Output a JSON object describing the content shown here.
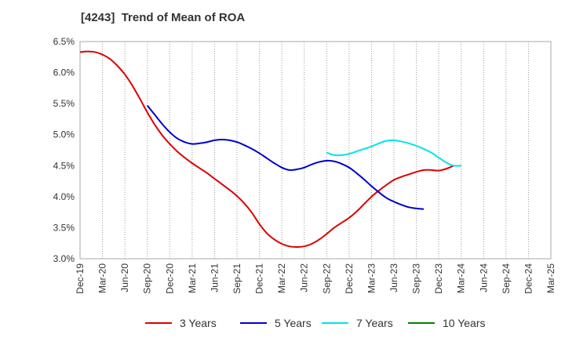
{
  "chart_data": {
    "type": "line",
    "title": "[4243]  Trend of Mean of ROA",
    "xlabel": "",
    "ylabel": "",
    "x_ticks": [
      "Dec-19",
      "Mar-20",
      "Jun-20",
      "Sep-20",
      "Dec-20",
      "Mar-21",
      "Jun-21",
      "Sep-21",
      "Dec-21",
      "Mar-22",
      "Jun-22",
      "Sep-22",
      "Dec-22",
      "Mar-23",
      "Jun-23",
      "Sep-23",
      "Dec-23",
      "Mar-24",
      "Jun-24",
      "Sep-24",
      "Dec-24",
      "Mar-25"
    ],
    "y_ticks": [
      "3.0%",
      "3.5%",
      "4.0%",
      "4.5%",
      "5.0%",
      "5.5%",
      "6.0%",
      "6.5%"
    ],
    "ylim": [
      3.0,
      6.5
    ],
    "y_unit": "%",
    "grid": "vertical dotted",
    "legend_position": "bottom",
    "series": [
      {
        "name": "3 Years",
        "color": "#dd0000",
        "x_start": "Dec-19",
        "values": [
          6.33,
          6.34,
          6.33,
          6.29,
          6.22,
          6.11,
          5.97,
          5.79,
          5.58,
          5.36,
          5.16,
          4.99,
          4.85,
          4.73,
          4.63,
          4.54,
          4.46,
          4.38,
          4.29,
          4.2,
          4.11,
          4.01,
          3.89,
          3.74,
          3.56,
          3.41,
          3.31,
          3.24,
          3.2,
          3.19,
          3.2,
          3.24,
          3.31,
          3.4,
          3.5,
          3.58,
          3.66,
          3.76,
          3.88,
          4.0,
          4.1,
          4.19,
          4.27,
          4.32,
          4.36,
          4.4,
          4.43,
          4.43,
          4.42,
          4.45,
          4.5
        ]
      },
      {
        "name": "5 Years",
        "color": "#0000cc",
        "x_start": "Sep-20",
        "values": [
          5.47,
          5.32,
          5.17,
          5.04,
          4.94,
          4.88,
          4.85,
          4.86,
          4.88,
          4.91,
          4.92,
          4.91,
          4.88,
          4.83,
          4.77,
          4.7,
          4.62,
          4.54,
          4.47,
          4.43,
          4.44,
          4.47,
          4.52,
          4.56,
          4.58,
          4.57,
          4.53,
          4.47,
          4.38,
          4.28,
          4.17,
          4.07,
          3.98,
          3.92,
          3.87,
          3.83,
          3.81,
          3.8
        ]
      },
      {
        "name": "7 Years",
        "color": "#00e5e5",
        "x_start": "Sep-22",
        "values": [
          4.71,
          4.67,
          4.67,
          4.69,
          4.73,
          4.77,
          4.81,
          4.86,
          4.9,
          4.91,
          4.89,
          4.86,
          4.82,
          4.77,
          4.71,
          4.63,
          4.55,
          4.5,
          4.5
        ]
      },
      {
        "name": "10 Years",
        "color": "#008000",
        "x_start": "Dec-19",
        "values": []
      }
    ]
  }
}
